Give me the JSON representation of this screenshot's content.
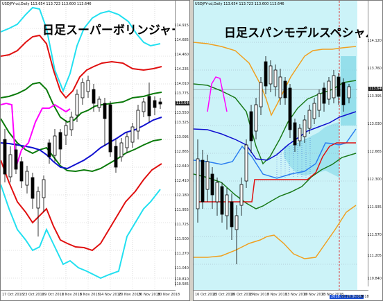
{
  "left": {
    "info": "USDJPY-cd,Daily   113.654 113.723 113.600 113.646",
    "title": "日足スーパーボリンジャー",
    "price_tag": "113.646",
    "y_ticks": [
      "114.915",
      "114.685",
      "114.460",
      "114.235",
      "114.010",
      "113.775",
      "113.550",
      "113.325",
      "113.095",
      "112.865",
      "112.640",
      "112.410",
      "112.180",
      "111.955",
      "111.725",
      "111.500",
      "111.270",
      "111.040",
      "110.810",
      "110.585"
    ],
    "x_ticks": [
      "17 Oct 2018",
      "23 Oct 2018",
      "29 Oct 2018",
      "2 Nov 2018",
      "8 Nov 2018",
      "14 Nov 2018",
      "20 Nov 2018",
      "26 Nov 2018",
      "30 Nov 2018"
    ]
  },
  "right": {
    "info": "USDJPY-cd,Daily   113.654 113.723 113.600 113.646",
    "title": "日足スパンモデルスペシャル",
    "price_tag": "113.646",
    "y_ticks": [
      "114.120",
      "113.760",
      "113.395",
      "113.030",
      "112.665",
      "112.300",
      "111.935",
      "111.570",
      "111.205",
      "110.840"
    ],
    "x_ticks": [
      "16 Oct 2018",
      "22 Oct 2018",
      "26 Oct 2018",
      "1 Nov 2018",
      "7 Nov 2018",
      "13 Nov 2018",
      "19 Nov 2018",
      "23 Nov 2018",
      "29 Nov 2018",
      "2018.11.29 00:00",
      "2018"
    ]
  }
}
